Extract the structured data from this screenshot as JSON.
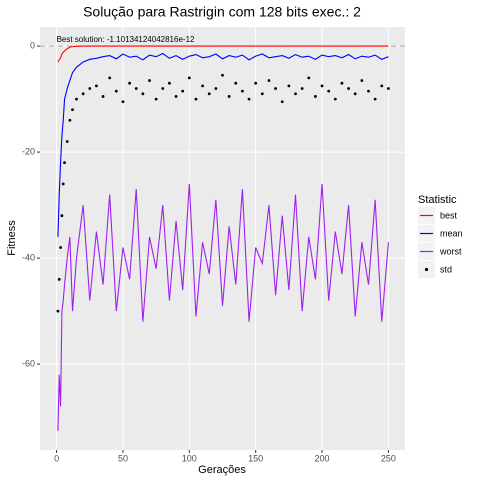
{
  "chart_data": {
    "type": "line",
    "title": "Solução para Rastrigin com 128 bits exec.: 2",
    "x_label": "Gerações",
    "y_label": "Fitness",
    "legend_title": "Statistic",
    "legend": "right",
    "annotation": "Best solution: -1.10134124042816e-12",
    "hline": 0,
    "xlim": [
      -12.5,
      262.5
    ],
    "xticks": [
      0,
      50,
      100,
      150,
      200,
      250
    ],
    "ylim": [
      -76.2,
      3.6
    ],
    "yticks": [
      0,
      -20,
      -40,
      -60
    ],
    "grid": true,
    "x": [
      1,
      2,
      3,
      4,
      5,
      6,
      8,
      10,
      12,
      15,
      20,
      25,
      30,
      35,
      40,
      45,
      50,
      55,
      60,
      65,
      70,
      75,
      80,
      85,
      90,
      95,
      100,
      105,
      110,
      115,
      120,
      125,
      130,
      135,
      140,
      145,
      150,
      155,
      160,
      165,
      170,
      175,
      180,
      185,
      190,
      195,
      200,
      205,
      210,
      215,
      220,
      225,
      230,
      235,
      240,
      245,
      250
    ],
    "series": [
      {
        "name": "best",
        "color": "#ff0000",
        "style": "line",
        "values": [
          -3,
          -2.6,
          -2.2,
          -1.5,
          -1.2,
          -0.9,
          -0.5,
          -0.2,
          -0.1,
          -0.05,
          0,
          0,
          0,
          0,
          0,
          0,
          0,
          0,
          0,
          0,
          0,
          0,
          0,
          0,
          0,
          0,
          0,
          0,
          0,
          0,
          0,
          0,
          0,
          0,
          0,
          0,
          0,
          0,
          0,
          0,
          0,
          0,
          0,
          0,
          0,
          0,
          0,
          0,
          0,
          0,
          0,
          0,
          0,
          0,
          0,
          0,
          0
        ]
      },
      {
        "name": "mean",
        "color": "#0000ff",
        "style": "line",
        "values": [
          -36,
          -28,
          -22,
          -17,
          -14,
          -10,
          -8,
          -6.5,
          -5,
          -4,
          -3,
          -2.5,
          -2.3,
          -2,
          -1.8,
          -2.4,
          -1.5,
          -2.1,
          -1.9,
          -2.6,
          -1.7,
          -2,
          -1.4,
          -2.3,
          -1.8,
          -2.5,
          -1.9,
          -1.6,
          -2.2,
          -2,
          -1.5,
          -2.4,
          -1.8,
          -2.1,
          -1.7,
          -2.6,
          -1.9,
          -1.5,
          -2.2,
          -2,
          -1.8,
          -2.3,
          -1.6,
          -2.1,
          -1.9,
          -2.5,
          -1.7,
          -2,
          -1.8,
          -2.2,
          -1.6,
          -2.4,
          -1.9,
          -2.1,
          -1.7,
          -2.5,
          -2
        ]
      },
      {
        "name": "worst",
        "color": "#a020f0",
        "style": "line",
        "values": [
          -72.6,
          -62,
          -68,
          -50,
          -48,
          -45,
          -40,
          -36,
          -50,
          -40,
          -30,
          -48,
          -35,
          -45,
          -28,
          -50,
          -38,
          -44,
          -27,
          -52,
          -36,
          -42,
          -30,
          -48,
          -33,
          -46,
          -26,
          -51,
          -37,
          -43,
          -29,
          -49,
          -34,
          -45,
          -27,
          -52,
          -38,
          -41,
          -30,
          -47,
          -32,
          -46,
          -28,
          -50,
          -36,
          -44,
          -26,
          -48,
          -35,
          -43,
          -30,
          -51,
          -37,
          -45,
          -29,
          -52,
          -37
        ]
      },
      {
        "name": "std",
        "color": "#000000",
        "style": "points",
        "values": [
          -50,
          -44,
          -38,
          -32,
          -26,
          -22,
          -18,
          -14,
          -12,
          -10,
          -9,
          -8,
          -7.5,
          -9.5,
          -6,
          -8.5,
          -10.5,
          -7,
          -8,
          -9,
          -6.5,
          -10,
          -8,
          -7,
          -9.5,
          -8.5,
          -6,
          -10,
          -7.5,
          -9,
          -8,
          -5.5,
          -9.5,
          -7,
          -8.5,
          -10,
          -7,
          -9,
          -6.5,
          -8,
          -10.5,
          -7.5,
          -9,
          -8,
          -6,
          -9.5,
          -7.5,
          -8.5,
          -10,
          -7,
          -8,
          -9,
          -6.5,
          -8.5,
          -10,
          -7.5,
          -8
        ]
      }
    ]
  }
}
